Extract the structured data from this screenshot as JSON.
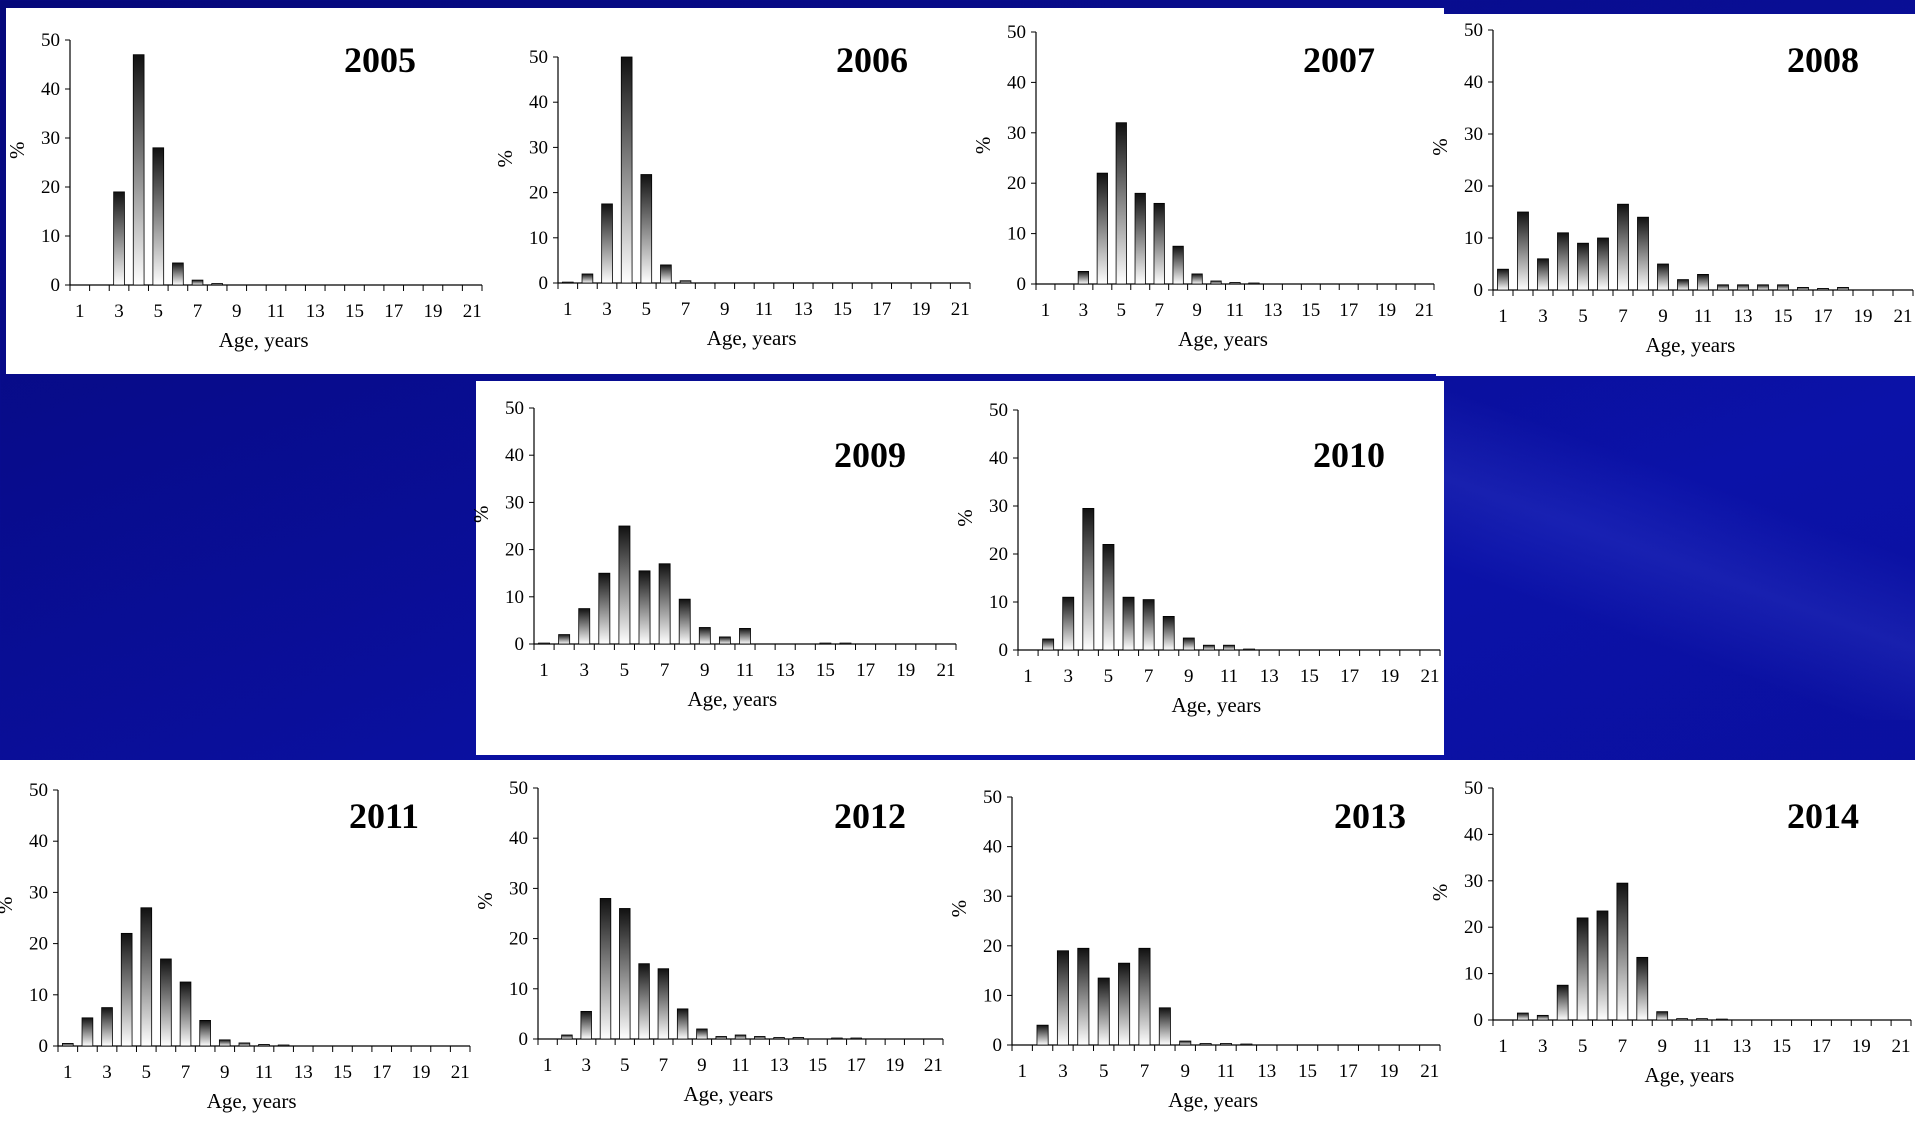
{
  "colors": {
    "background": "#0a0f9a",
    "panel": "#ffffff",
    "bar_dark": "#111111",
    "bar_light": "#ffffff"
  },
  "chart_data": [
    {
      "type": "bar",
      "title": "2005",
      "xlabel": "Age, years",
      "ylabel": "%",
      "ylim": [
        0,
        50
      ],
      "x": [
        1,
        2,
        3,
        4,
        5,
        6,
        7,
        8,
        9,
        10,
        11,
        12,
        13,
        14,
        15,
        16,
        17,
        18,
        19,
        20,
        21
      ],
      "xticks": [
        1,
        3,
        5,
        7,
        9,
        11,
        13,
        15,
        17,
        19,
        21
      ],
      "yticks": [
        0,
        10,
        20,
        30,
        40,
        50
      ],
      "values": [
        0,
        0,
        19,
        47,
        28,
        4.5,
        1,
        0.3,
        0,
        0,
        0,
        0,
        0,
        0,
        0,
        0,
        0,
        0,
        0,
        0,
        0
      ]
    },
    {
      "type": "bar",
      "title": "2006",
      "xlabel": "Age, years",
      "ylabel": "%",
      "ylim": [
        0,
        50
      ],
      "x": [
        1,
        2,
        3,
        4,
        5,
        6,
        7,
        8,
        9,
        10,
        11,
        12,
        13,
        14,
        15,
        16,
        17,
        18,
        19,
        20,
        21
      ],
      "xticks": [
        1,
        3,
        5,
        7,
        9,
        11,
        13,
        15,
        17,
        19,
        21
      ],
      "yticks": [
        0,
        10,
        20,
        30,
        40,
        50
      ],
      "values": [
        0.2,
        2,
        17.5,
        50,
        24,
        4,
        0.5,
        0,
        0,
        0,
        0,
        0,
        0,
        0,
        0,
        0,
        0,
        0,
        0,
        0,
        0
      ]
    },
    {
      "type": "bar",
      "title": "2007",
      "xlabel": "Age, years",
      "ylabel": "%",
      "ylim": [
        0,
        50
      ],
      "x": [
        1,
        2,
        3,
        4,
        5,
        6,
        7,
        8,
        9,
        10,
        11,
        12,
        13,
        14,
        15,
        16,
        17,
        18,
        19,
        20,
        21
      ],
      "xticks": [
        1,
        3,
        5,
        7,
        9,
        11,
        13,
        15,
        17,
        19,
        21
      ],
      "yticks": [
        0,
        10,
        20,
        30,
        40,
        50
      ],
      "values": [
        0,
        0,
        2.5,
        22,
        32,
        18,
        16,
        7.5,
        2,
        0.6,
        0.3,
        0.2,
        0,
        0,
        0,
        0,
        0,
        0,
        0,
        0,
        0
      ]
    },
    {
      "type": "bar",
      "title": "2008",
      "xlabel": "Age, years",
      "ylabel": "%",
      "ylim": [
        0,
        50
      ],
      "x": [
        1,
        2,
        3,
        4,
        5,
        6,
        7,
        8,
        9,
        10,
        11,
        12,
        13,
        14,
        15,
        16,
        17,
        18,
        19,
        20,
        21
      ],
      "xticks": [
        1,
        3,
        5,
        7,
        9,
        11,
        13,
        15,
        17,
        19,
        21
      ],
      "yticks": [
        0,
        10,
        20,
        30,
        40,
        50
      ],
      "values": [
        4,
        15,
        6,
        11,
        9,
        10,
        16.5,
        14,
        5,
        2,
        3,
        1,
        1,
        1,
        1,
        0.5,
        0.3,
        0.5,
        0,
        0,
        0
      ]
    },
    {
      "type": "bar",
      "title": "2009",
      "xlabel": "Age, years",
      "ylabel": "%",
      "ylim": [
        0,
        50
      ],
      "x": [
        1,
        2,
        3,
        4,
        5,
        6,
        7,
        8,
        9,
        10,
        11,
        12,
        13,
        14,
        15,
        16,
        17,
        18,
        19,
        20,
        21
      ],
      "xticks": [
        1,
        3,
        5,
        7,
        9,
        11,
        13,
        15,
        17,
        19,
        21
      ],
      "yticks": [
        0,
        10,
        20,
        30,
        40,
        50
      ],
      "values": [
        0.2,
        2,
        7.5,
        15,
        25,
        15.5,
        17,
        9.5,
        3.5,
        1.5,
        3.3,
        0,
        0,
        0,
        0.2,
        0.2,
        0,
        0,
        0,
        0,
        0
      ]
    },
    {
      "type": "bar",
      "title": "2010",
      "xlabel": "Age, years",
      "ylabel": "%",
      "ylim": [
        0,
        50
      ],
      "x": [
        1,
        2,
        3,
        4,
        5,
        6,
        7,
        8,
        9,
        10,
        11,
        12,
        13,
        14,
        15,
        16,
        17,
        18,
        19,
        20,
        21
      ],
      "xticks": [
        1,
        3,
        5,
        7,
        9,
        11,
        13,
        15,
        17,
        19,
        21
      ],
      "yticks": [
        0,
        10,
        20,
        30,
        40,
        50
      ],
      "values": [
        0,
        2.3,
        11,
        29.5,
        22,
        11,
        10.5,
        7,
        2.5,
        1,
        1,
        0.2,
        0,
        0,
        0,
        0,
        0,
        0,
        0,
        0,
        0
      ]
    },
    {
      "type": "bar",
      "title": "2011",
      "xlabel": "Age, years",
      "ylabel": "%",
      "ylim": [
        0,
        50
      ],
      "x": [
        1,
        2,
        3,
        4,
        5,
        6,
        7,
        8,
        9,
        10,
        11,
        12,
        13,
        14,
        15,
        16,
        17,
        18,
        19,
        20,
        21
      ],
      "xticks": [
        1,
        3,
        5,
        7,
        9,
        11,
        13,
        15,
        17,
        19,
        21
      ],
      "yticks": [
        0,
        10,
        20,
        30,
        40,
        50
      ],
      "values": [
        0.5,
        5.5,
        7.5,
        22,
        27,
        17,
        12.5,
        5,
        1.2,
        0.6,
        0.3,
        0.2,
        0,
        0,
        0,
        0,
        0,
        0,
        0,
        0,
        0
      ]
    },
    {
      "type": "bar",
      "title": "2012",
      "xlabel": "Age, years",
      "ylabel": "%",
      "ylim": [
        0,
        50
      ],
      "x": [
        1,
        2,
        3,
        4,
        5,
        6,
        7,
        8,
        9,
        10,
        11,
        12,
        13,
        14,
        15,
        16,
        17,
        18,
        19,
        20,
        21
      ],
      "xticks": [
        1,
        3,
        5,
        7,
        9,
        11,
        13,
        15,
        17,
        19,
        21
      ],
      "yticks": [
        0,
        10,
        20,
        30,
        40,
        50
      ],
      "values": [
        0,
        0.8,
        5.5,
        28,
        26,
        15,
        14,
        6,
        2,
        0.5,
        0.8,
        0.5,
        0.3,
        0.3,
        0,
        0.2,
        0.2,
        0,
        0,
        0,
        0
      ]
    },
    {
      "type": "bar",
      "title": "2013",
      "xlabel": "Age, years",
      "ylabel": "%",
      "ylim": [
        0,
        50
      ],
      "x": [
        1,
        2,
        3,
        4,
        5,
        6,
        7,
        8,
        9,
        10,
        11,
        12,
        13,
        14,
        15,
        16,
        17,
        18,
        19,
        20,
        21
      ],
      "xticks": [
        1,
        3,
        5,
        7,
        9,
        11,
        13,
        15,
        17,
        19,
        21
      ],
      "yticks": [
        0,
        10,
        20,
        30,
        40,
        50
      ],
      "values": [
        0,
        4,
        19,
        19.5,
        13.5,
        16.5,
        19.5,
        7.5,
        0.8,
        0.3,
        0.3,
        0.2,
        0,
        0,
        0,
        0,
        0,
        0,
        0,
        0,
        0
      ]
    },
    {
      "type": "bar",
      "title": "2014",
      "xlabel": "Age, years",
      "ylabel": "%",
      "ylim": [
        0,
        50
      ],
      "x": [
        1,
        2,
        3,
        4,
        5,
        6,
        7,
        8,
        9,
        10,
        11,
        12,
        13,
        14,
        15,
        16,
        17,
        18,
        19,
        20,
        21
      ],
      "xticks": [
        1,
        3,
        5,
        7,
        9,
        11,
        13,
        15,
        17,
        19,
        21
      ],
      "yticks": [
        0,
        10,
        20,
        30,
        40,
        50
      ],
      "values": [
        0,
        1.5,
        1,
        7.5,
        22,
        23.5,
        29.5,
        13.5,
        1.8,
        0.3,
        0.3,
        0.2,
        0,
        0,
        0,
        0,
        0,
        0,
        0,
        0,
        0
      ]
    }
  ]
}
